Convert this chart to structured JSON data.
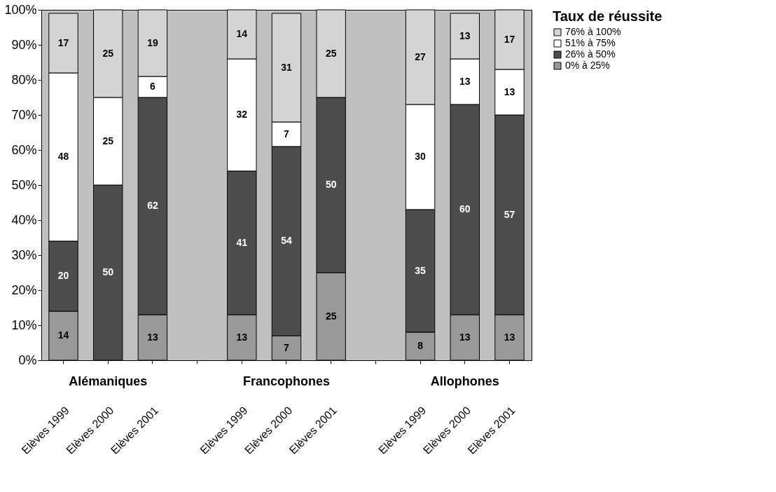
{
  "chart_data": {
    "type": "bar",
    "stacked": true,
    "data_labels": true,
    "legend": "right",
    "legend_title": "Taux de réussite",
    "categories": [
      "Elèves 1999",
      "Elèves 2000",
      "Elèves 2001",
      null,
      "Elèves 1999",
      "Elèves 2000",
      "Elèves 2001",
      null,
      "Elèves 1999",
      "Elèves 2000",
      "Elèves 2001"
    ],
    "annotations": [
      "Alémaniques",
      "Francophones",
      "Allophones"
    ],
    "series": [
      {
        "name": "0% à 25%",
        "color": "#999999",
        "values": [
          14,
          null,
          13,
          null,
          13,
          7,
          25,
          null,
          8,
          13,
          13
        ]
      },
      {
        "name": "26% à 50%",
        "color": "#4d4d4d",
        "values": [
          20,
          50,
          62,
          null,
          41,
          54,
          50,
          null,
          35,
          60,
          57
        ]
      },
      {
        "name": "51% à 75%",
        "color": "#ffffff",
        "values": [
          48,
          25,
          6,
          null,
          32,
          7,
          null,
          null,
          30,
          13,
          13
        ]
      },
      {
        "name": "76% à 100%",
        "color": "#d4d4d4",
        "values": [
          17,
          25,
          19,
          null,
          14,
          31,
          25,
          null,
          27,
          13,
          17
        ]
      }
    ],
    "ylim": [
      0,
      100
    ],
    "yticks": [
      {
        "value": 0,
        "label": "0%"
      },
      {
        "value": 10,
        "label": "10%"
      },
      {
        "value": 20,
        "label": "20%"
      },
      {
        "value": 30,
        "label": "30%"
      },
      {
        "value": 40,
        "label": "40%"
      },
      {
        "value": 50,
        "label": "50%"
      },
      {
        "value": 60,
        "label": "60%"
      },
      {
        "value": 70,
        "label": "70%"
      },
      {
        "value": 80,
        "label": "80%"
      },
      {
        "value": 90,
        "label": "90%"
      },
      {
        "value": 100,
        "label": "100%"
      }
    ],
    "grid": false
  }
}
